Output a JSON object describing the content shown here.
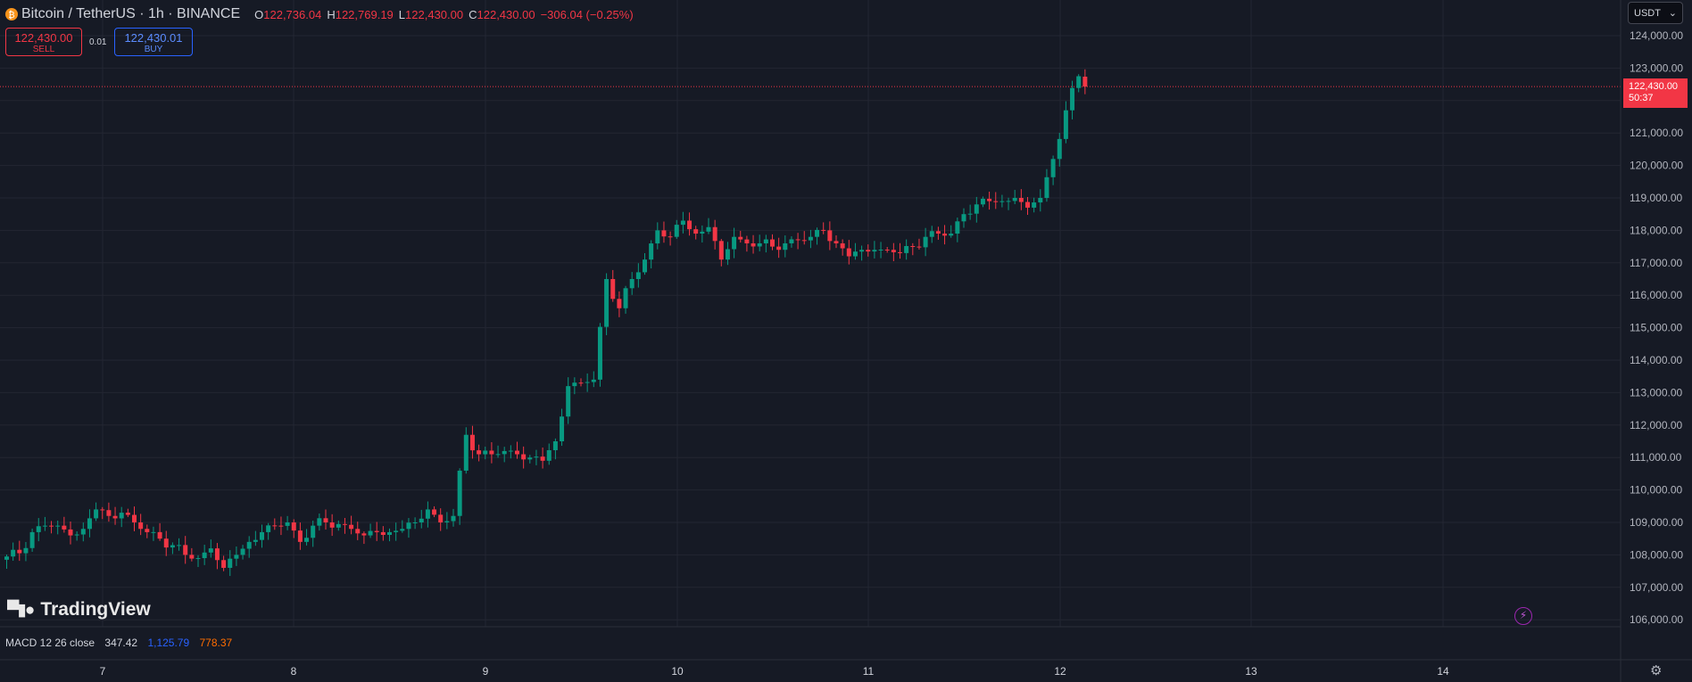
{
  "header": {
    "symbol": "Bitcoin / TetherUS · 1h · BINANCE",
    "o_label": "O",
    "o": "122,736.04",
    "h_label": "H",
    "h": "122,769.19",
    "l_label": "L",
    "l": "122,430.00",
    "c_label": "C",
    "c": "122,430.00",
    "change": "−306.04 (−0.25%)"
  },
  "trade": {
    "sell_price": "122,430.00",
    "sell_label": "SELL",
    "spread": "0.01",
    "buy_price": "122,430.01",
    "buy_label": "BUY"
  },
  "currency": "USDT",
  "last_price": {
    "price": "122,430.00",
    "countdown": "50:37"
  },
  "brand": "TradingView",
  "macd": {
    "label": "MACD 12 26 close",
    "v1": "347.42",
    "v2": "1,125.79",
    "v3": "778.37"
  },
  "colors": {
    "up": "#089981",
    "down": "#f23645",
    "background": "#161a25",
    "grid": "#232632"
  },
  "icons": [
    "tradingview-logo-icon",
    "bolt-icon",
    "gear-icon",
    "chevron-down-icon",
    "bitcoin-icon"
  ],
  "chart_data": {
    "type": "candlestick",
    "timeframe": "1h",
    "ylim": [
      105800,
      124500
    ],
    "y_ticks": [
      "124,000.00",
      "123,000.00",
      "122,000.00",
      "121,000.00",
      "120,000.00",
      "119,000.00",
      "118,000.00",
      "117,000.00",
      "116,000.00",
      "115,000.00",
      "114,000.00",
      "113,000.00",
      "112,000.00",
      "111,000.00",
      "110,000.00",
      "109,000.00",
      "108,000.00",
      "107,000.00",
      "106,000.00"
    ],
    "x_ticks": [
      "7",
      "8",
      "9",
      "10",
      "11",
      "12",
      "13",
      "14"
    ],
    "grid": true,
    "close_anchors": [
      [
        0,
        107950
      ],
      [
        2,
        108050
      ],
      [
        4,
        108700
      ],
      [
        6,
        108900
      ],
      [
        8,
        108900
      ],
      [
        10,
        108600
      ],
      [
        12,
        108800
      ],
      [
        14,
        109400
      ],
      [
        16,
        109200
      ],
      [
        18,
        109300
      ],
      [
        20,
        109000
      ],
      [
        22,
        108700
      ],
      [
        24,
        108500
      ],
      [
        26,
        108300
      ],
      [
        28,
        108000
      ],
      [
        30,
        107900
      ],
      [
        32,
        108200
      ],
      [
        34,
        107600
      ],
      [
        36,
        108000
      ],
      [
        38,
        108400
      ],
      [
        40,
        108700
      ],
      [
        42,
        108900
      ],
      [
        44,
        109000
      ],
      [
        46,
        108400
      ],
      [
        48,
        108900
      ],
      [
        50,
        109000
      ],
      [
        52,
        108950
      ],
      [
        54,
        108800
      ],
      [
        56,
        108600
      ],
      [
        58,
        108700
      ],
      [
        60,
        108700
      ],
      [
        62,
        108800
      ],
      [
        64,
        109000
      ],
      [
        66,
        109400
      ],
      [
        68,
        109000
      ],
      [
        70,
        109200
      ],
      [
        72,
        111700
      ],
      [
        74,
        111100
      ],
      [
        76,
        111100
      ],
      [
        78,
        111200
      ],
      [
        80,
        111100
      ],
      [
        82,
        111000
      ],
      [
        84,
        110900
      ],
      [
        86,
        111500
      ],
      [
        88,
        113200
      ],
      [
        90,
        113300
      ],
      [
        92,
        113400
      ],
      [
        94,
        116500
      ],
      [
        96,
        115600
      ],
      [
        98,
        116500
      ],
      [
        100,
        117100
      ],
      [
        102,
        118000
      ],
      [
        104,
        117800
      ],
      [
        106,
        118300
      ],
      [
        108,
        117900
      ],
      [
        110,
        118100
      ],
      [
        112,
        117100
      ],
      [
        114,
        117800
      ],
      [
        116,
        117600
      ],
      [
        118,
        117600
      ],
      [
        120,
        117500
      ],
      [
        122,
        117600
      ],
      [
        124,
        117700
      ],
      [
        126,
        117800
      ],
      [
        128,
        118000
      ],
      [
        130,
        117600
      ],
      [
        132,
        117200
      ],
      [
        134,
        117400
      ],
      [
        136,
        117400
      ],
      [
        138,
        117400
      ],
      [
        140,
        117300
      ],
      [
        142,
        117500
      ],
      [
        144,
        117800
      ],
      [
        146,
        117900
      ],
      [
        148,
        117900
      ],
      [
        150,
        118500
      ],
      [
        152,
        118800
      ],
      [
        154,
        118900
      ],
      [
        156,
        118900
      ],
      [
        158,
        119000
      ],
      [
        160,
        118700
      ],
      [
        162,
        119000
      ],
      [
        164,
        120200
      ],
      [
        166,
        121700
      ],
      [
        168,
        122750
      ],
      [
        169,
        122430
      ]
    ]
  }
}
